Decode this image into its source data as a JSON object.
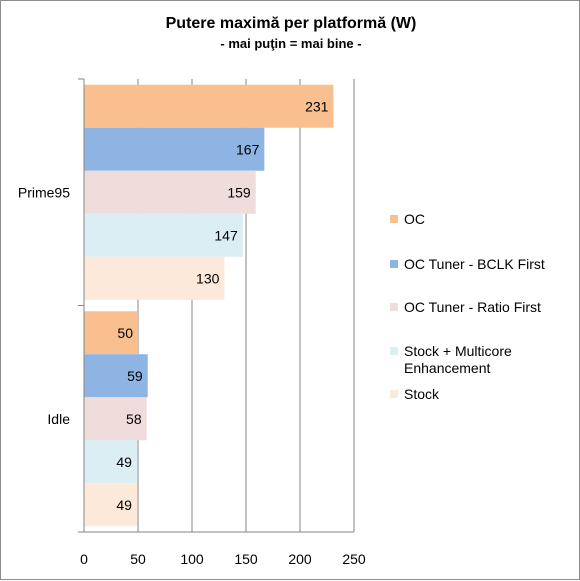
{
  "chart_data": {
    "type": "bar",
    "orientation": "horizontal",
    "title": "Putere maximă per platformă (W)",
    "subtitle": "- mai puţin = mai bine -",
    "categories": [
      "Prime95",
      "Idle"
    ],
    "series": [
      {
        "name": "OC",
        "values": [
          231,
          50
        ],
        "color": "#f9bf8f",
        "legend_lines": [
          "OC"
        ]
      },
      {
        "name": "OC Tuner - BCLK First",
        "values": [
          167,
          59
        ],
        "color": "#8eb4e3",
        "legend_lines": [
          "OC Tuner - BCLK First"
        ]
      },
      {
        "name": "OC Tuner - Ratio First",
        "values": [
          159,
          58
        ],
        "color": "#f0dcdb",
        "legend_lines": [
          "OC Tuner - Ratio First"
        ]
      },
      {
        "name": "Stock + Multicore Enhancement",
        "values": [
          147,
          49
        ],
        "color": "#dbeef4",
        "legend_lines": [
          "Stock + Multicore",
          "Enhancement"
        ]
      },
      {
        "name": "Stock",
        "values": [
          130,
          49
        ],
        "color": "#fde9d9",
        "legend_lines": [
          "Stock"
        ]
      }
    ],
    "xlim": [
      0,
      250
    ],
    "xticks": [
      0,
      50,
      100,
      150,
      200,
      250
    ],
    "grid": true,
    "legend_position": "right"
  }
}
